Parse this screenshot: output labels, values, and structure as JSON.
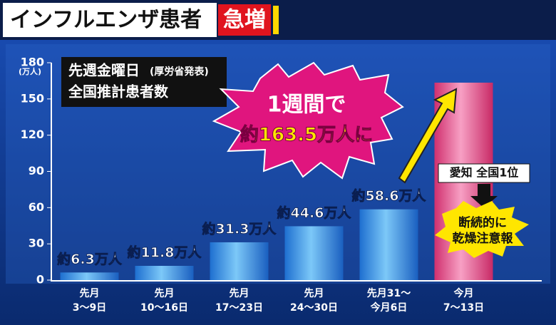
{
  "chart_data": {
    "type": "bar",
    "title": "インフルエンザ患者",
    "title_badge": "急増",
    "subtitle": [
      "先週金曜日",
      "(厚労省発表)",
      "全国推計患者数"
    ],
    "y_unit": "(万人)",
    "categories": [
      [
        "先月",
        "3～9日"
      ],
      [
        "先月",
        "10～16日"
      ],
      [
        "先月",
        "17～23日"
      ],
      [
        "先月",
        "24～30日"
      ],
      [
        "先月31～",
        "今月6日"
      ],
      [
        "今月",
        "7～13日"
      ]
    ],
    "values": [
      6.3,
      11.8,
      31.3,
      44.6,
      58.6,
      163.5
    ],
    "value_labels": [
      "約6.3万人",
      "約11.8万人",
      "約31.3万人",
      "約44.6万人",
      "約58.6万人",
      "約163.5万人に"
    ],
    "colors": [
      "blue",
      "blue",
      "blue",
      "blue",
      "blue",
      "pink"
    ],
    "annotations": [
      "1週間で",
      "愛知 全国1位",
      "断続的に",
      "乾燥注意報"
    ],
    "ylim": [
      0,
      180
    ],
    "yticks": [
      0,
      30,
      60,
      90,
      120,
      150,
      180
    ],
    "grid": false
  }
}
